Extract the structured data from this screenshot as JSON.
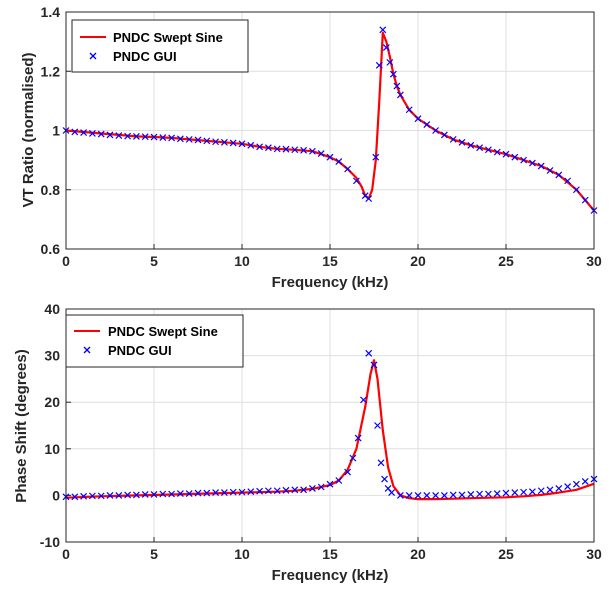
{
  "chart_data": [
    {
      "type": "line",
      "xlabel": "Frequency (kHz)",
      "ylabel": "VT Ratio (normalised)",
      "xlim": [
        0,
        30
      ],
      "ylim": [
        0.6,
        1.4
      ],
      "xticks": [
        "0",
        "5",
        "10",
        "15",
        "20",
        "25",
        "30"
      ],
      "yticks": [
        "0.6",
        "0.8",
        "1",
        "1.2",
        "1.4"
      ],
      "grid": true,
      "legend_position": "top-left",
      "series": [
        {
          "name": "PNDC Swept Sine",
          "style": "line",
          "color": "#ff0000",
          "x": [
            0,
            1,
            2,
            3,
            4,
            5,
            6,
            7,
            8,
            9,
            10,
            11,
            12,
            13,
            14,
            15,
            15.5,
            16,
            16.5,
            16.8,
            17,
            17.2,
            17.4,
            17.6,
            17.8,
            18,
            18.2,
            18.4,
            18.6,
            18.8,
            19,
            19.5,
            20,
            21,
            22,
            23,
            24,
            25,
            26,
            27,
            28,
            29,
            30
          ],
          "y": [
            1.0,
            0.995,
            0.99,
            0.985,
            0.98,
            0.978,
            0.975,
            0.97,
            0.965,
            0.96,
            0.955,
            0.945,
            0.938,
            0.935,
            0.93,
            0.91,
            0.895,
            0.87,
            0.84,
            0.81,
            0.78,
            0.77,
            0.8,
            0.9,
            1.1,
            1.33,
            1.3,
            1.25,
            1.19,
            1.15,
            1.12,
            1.07,
            1.04,
            1.0,
            0.97,
            0.95,
            0.935,
            0.92,
            0.9,
            0.88,
            0.85,
            0.8,
            0.73
          ]
        },
        {
          "name": "PNDC GUI",
          "style": "marker",
          "marker": "x",
          "color": "#0000ff",
          "x": [
            0,
            0.5,
            1,
            1.5,
            2,
            2.5,
            3,
            3.5,
            4,
            4.5,
            5,
            5.5,
            6,
            6.5,
            7,
            7.5,
            8,
            8.5,
            9,
            9.5,
            10,
            10.5,
            11,
            11.5,
            12,
            12.5,
            13,
            13.5,
            14,
            14.5,
            15,
            15.5,
            16,
            16.5,
            17,
            17.2,
            17.6,
            17.8,
            18,
            18.2,
            18.4,
            18.6,
            18.8,
            19,
            19.5,
            20,
            20.5,
            21,
            21.5,
            22,
            22.5,
            23,
            23.5,
            24,
            24.5,
            25,
            25.5,
            26,
            26.5,
            27,
            27.5,
            28,
            28.5,
            29,
            29.5,
            30
          ],
          "y": [
            1.0,
            0.995,
            0.993,
            0.99,
            0.988,
            0.985,
            0.983,
            0.981,
            0.98,
            0.979,
            0.978,
            0.976,
            0.975,
            0.972,
            0.97,
            0.968,
            0.965,
            0.962,
            0.96,
            0.958,
            0.955,
            0.95,
            0.945,
            0.942,
            0.938,
            0.937,
            0.935,
            0.933,
            0.93,
            0.922,
            0.91,
            0.895,
            0.87,
            0.83,
            0.78,
            0.77,
            0.91,
            1.22,
            1.34,
            1.28,
            1.23,
            1.19,
            1.15,
            1.12,
            1.07,
            1.04,
            1.02,
            1.0,
            0.985,
            0.97,
            0.96,
            0.95,
            0.942,
            0.935,
            0.927,
            0.92,
            0.91,
            0.9,
            0.89,
            0.88,
            0.865,
            0.85,
            0.83,
            0.8,
            0.765,
            0.73
          ]
        }
      ]
    },
    {
      "type": "line",
      "xlabel": "Frequency (kHz)",
      "ylabel": "Phase Shift (degrees)",
      "xlim": [
        0,
        30
      ],
      "ylim": [
        -10,
        40
      ],
      "xticks": [
        "0",
        "5",
        "10",
        "15",
        "20",
        "25",
        "30"
      ],
      "yticks": [
        "-10",
        "0",
        "10",
        "20",
        "30",
        "40"
      ],
      "grid": true,
      "legend_position": "top-left",
      "series": [
        {
          "name": "PNDC Swept Sine",
          "style": "line",
          "color": "#ff0000",
          "x": [
            0,
            2,
            4,
            6,
            8,
            10,
            12,
            13,
            14,
            15,
            15.5,
            16,
            16.5,
            17,
            17.3,
            17.5,
            17.7,
            18,
            18.3,
            18.6,
            19,
            19.5,
            20,
            21,
            22,
            23,
            24,
            25,
            26,
            27,
            28,
            29,
            30
          ],
          "y": [
            -0.5,
            -0.2,
            0.0,
            0.2,
            0.4,
            0.6,
            0.8,
            1.0,
            1.4,
            2.2,
            3.2,
            5.5,
            10.0,
            19.0,
            26.0,
            29.0,
            25.0,
            14.0,
            6.0,
            2.0,
            0.0,
            -0.6,
            -0.8,
            -0.8,
            -0.7,
            -0.6,
            -0.5,
            -0.4,
            -0.2,
            0.1,
            0.6,
            1.2,
            2.5
          ]
        },
        {
          "name": "PNDC GUI",
          "style": "marker",
          "marker": "x",
          "color": "#0000ff",
          "x": [
            0,
            0.5,
            1,
            1.5,
            2,
            2.5,
            3,
            3.5,
            4,
            4.5,
            5,
            5.5,
            6,
            6.5,
            7,
            7.5,
            8,
            8.5,
            9,
            9.5,
            10,
            10.5,
            11,
            11.5,
            12,
            12.5,
            13,
            13.5,
            14,
            14.5,
            15,
            15.5,
            16,
            16.3,
            16.6,
            16.9,
            17.2,
            17.5,
            17.7,
            17.9,
            18.1,
            18.3,
            18.5,
            19,
            19.5,
            20,
            20.5,
            21,
            21.5,
            22,
            22.5,
            23,
            23.5,
            24,
            24.5,
            25,
            25.5,
            26,
            26.5,
            27,
            27.5,
            28,
            28.5,
            29,
            29.5,
            30
          ],
          "y": [
            -0.3,
            -0.3,
            -0.2,
            -0.1,
            -0.1,
            0.0,
            0.0,
            0.1,
            0.1,
            0.2,
            0.2,
            0.3,
            0.3,
            0.4,
            0.4,
            0.5,
            0.5,
            0.6,
            0.6,
            0.7,
            0.7,
            0.8,
            0.9,
            1.0,
            1.0,
            1.1,
            1.2,
            1.2,
            1.5,
            1.8,
            2.4,
            3.2,
            5.0,
            8.0,
            12.3,
            20.5,
            30.5,
            28.0,
            15.0,
            7.0,
            3.5,
            1.5,
            0.6,
            0.0,
            0.0,
            0.0,
            0.0,
            0.0,
            0.0,
            0.1,
            0.1,
            0.2,
            0.3,
            0.3,
            0.4,
            0.5,
            0.6,
            0.7,
            0.8,
            1.0,
            1.2,
            1.5,
            1.9,
            2.4,
            3.0,
            3.5
          ]
        }
      ]
    }
  ]
}
